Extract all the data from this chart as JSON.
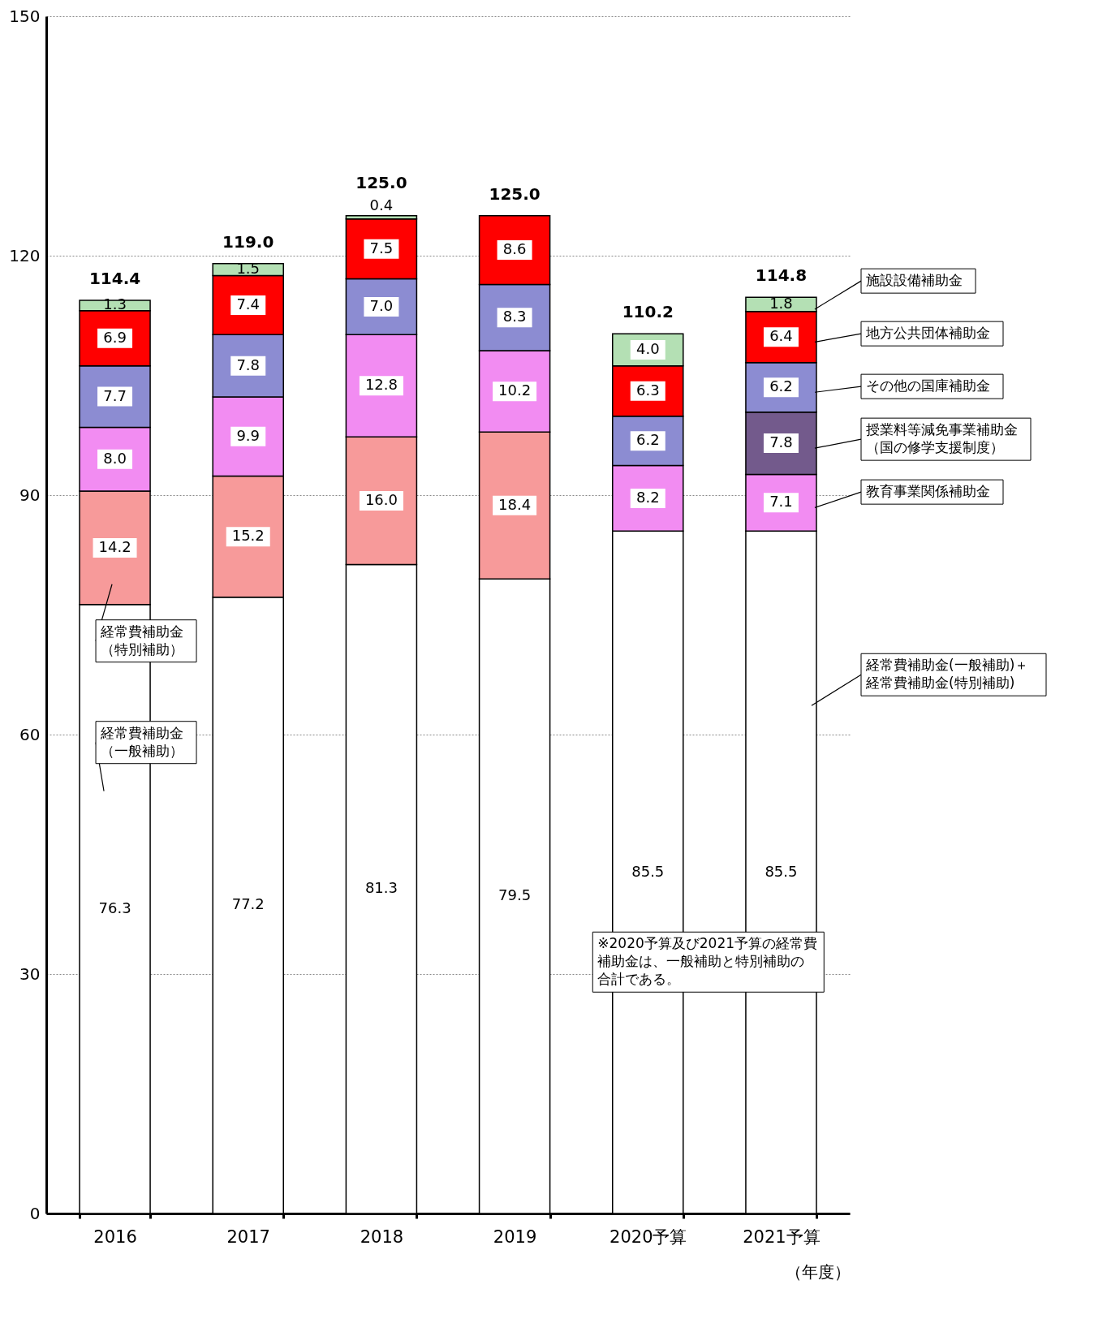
{
  "chart_data": {
    "type": "bar",
    "stacked": true,
    "categories": [
      "2016",
      "2017",
      "2018",
      "2019",
      "2020予算",
      "2021予算"
    ],
    "xlabel": "（年度）",
    "series": [
      {
        "name": "経常費補助金（一般補助）",
        "color": "#ffffff",
        "values": [
          76.3,
          77.2,
          81.3,
          79.5,
          85.5,
          85.5
        ],
        "value_labels": [
          "76.3",
          "77.2",
          "81.3",
          "79.5",
          "85.5",
          "85.5"
        ]
      },
      {
        "name": "経常費補助金（特別補助）",
        "color": "#f79a9a",
        "values": [
          14.2,
          15.2,
          16.0,
          18.4,
          null,
          null
        ],
        "value_labels": [
          "14.2",
          "15.2",
          "16.0",
          "18.4",
          null,
          null
        ]
      },
      {
        "name": "教育事業関係補助金",
        "color": "#f28cf2",
        "values": [
          8.0,
          9.9,
          12.8,
          10.2,
          8.2,
          7.1
        ],
        "value_labels": [
          "8.0",
          "9.9",
          "12.8",
          "10.2",
          "8.2",
          "7.1"
        ]
      },
      {
        "name": "授業料等減免事業補助金（国の修学支援制度）",
        "color": "#735a8c",
        "values": [
          null,
          null,
          null,
          null,
          null,
          7.8
        ],
        "value_labels": [
          null,
          null,
          null,
          null,
          null,
          "7.8"
        ]
      },
      {
        "name": "その他の国庫補助金",
        "color": "#8c8cd2",
        "values": [
          7.7,
          7.8,
          7.0,
          8.3,
          6.2,
          6.2
        ],
        "value_labels": [
          "7.7",
          "7.8",
          "7.0",
          "8.3",
          "6.2",
          "6.2"
        ]
      },
      {
        "name": "地方公共団体補助金",
        "color": "#ff0000",
        "values": [
          6.9,
          7.4,
          7.5,
          8.6,
          6.3,
          6.4
        ],
        "value_labels": [
          "6.9",
          "7.4",
          "7.5",
          "8.6",
          "6.3",
          "6.4"
        ]
      },
      {
        "name": "施設設備補助金",
        "color": "#b4e0b4",
        "values": [
          1.3,
          1.5,
          0.4,
          null,
          4.0,
          1.8
        ],
        "value_labels": [
          "1.3",
          "1.5",
          "0.4",
          null,
          "4.0",
          "1.8"
        ]
      }
    ],
    "totals": [
      "114.4",
      "119.0",
      "125.0",
      "125.0",
      "110.2",
      "114.8"
    ],
    "legend": "right",
    "ylim": [
      0,
      150
    ],
    "yticks": [
      0,
      30,
      60,
      90,
      120,
      150
    ],
    "grid": "y",
    "annotations": [
      "経常費補助金(一般補助)＋経常費補助金(特別補助)",
      "※2020予算及び2021予算の経常費補助金は、一般補助と特別補助の合計である。"
    ]
  }
}
